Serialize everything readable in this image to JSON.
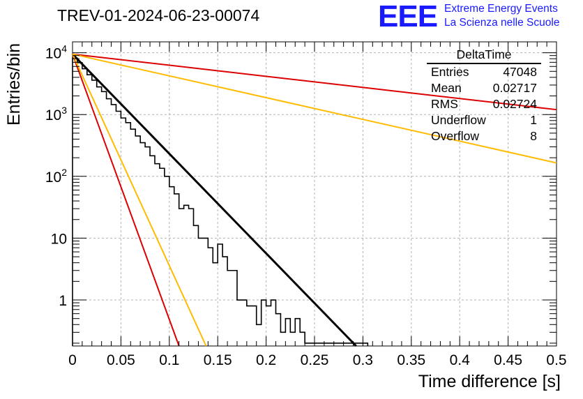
{
  "title": "TREV-01-2024-06-23-00074",
  "logo": {
    "mark": "EEE",
    "line1": "Extreme Energy Events",
    "line2": "La Scienza nelle Scuole",
    "color": "#1a1aff"
  },
  "stats": {
    "name": "DeltaTime",
    "rows": [
      {
        "label": "Entries",
        "value": "47048"
      },
      {
        "label": "Mean",
        "value": "0.02717"
      },
      {
        "label": "RMS",
        "value": "0.02724"
      },
      {
        "label": "Underflow",
        "value": "1"
      },
      {
        "label": "Overflow",
        "value": "8"
      }
    ]
  },
  "chart_data": {
    "type": "histogram",
    "title": "TREV-01-2024-06-23-00074",
    "xlabel": "Time difference [s]",
    "ylabel": "Entries/bin",
    "xlim": [
      0,
      0.5
    ],
    "ylim": [
      0.18,
      15000
    ],
    "yscale": "log",
    "grid": true,
    "x_ticks": [
      "0",
      "0.05",
      "0.1",
      "0.15",
      "0.2",
      "0.25",
      "0.3",
      "0.35",
      "0.4",
      "0.45",
      "0.5"
    ],
    "y_ticks": [
      {
        "value": 1,
        "base": "1",
        "exp": ""
      },
      {
        "value": 10,
        "base": "10",
        "exp": ""
      },
      {
        "value": 100,
        "base": "10",
        "exp": "2"
      },
      {
        "value": 1000,
        "base": "10",
        "exp": "3"
      },
      {
        "value": 10000,
        "base": "10",
        "exp": "4"
      }
    ],
    "bin_width": 0.005,
    "histogram": [
      8200,
      6900,
      5500,
      4400,
      3600,
      2800,
      2350,
      1800,
      1450,
      1130,
      880,
      740,
      580,
      450,
      350,
      300,
      215,
      160,
      135,
      100,
      68,
      52,
      30,
      34,
      30,
      16,
      10,
      10,
      7,
      4,
      8,
      5,
      3,
      3,
      1,
      1,
      0.8,
      0.8,
      0.4,
      1,
      0.8,
      1,
      0.6,
      0.3,
      0.5,
      0.3,
      0.5,
      0.3,
      0.2,
      0.2,
      0.2,
      0.2,
      0.2,
      0.2,
      0.2,
      0.2,
      0.2,
      0.2,
      0.2,
      0.2,
      0.2
    ],
    "fits": [
      {
        "name": "fit",
        "color": "#000000",
        "points": [
          [
            0,
            9500
          ],
          [
            0.293,
            0.18
          ]
        ]
      },
      {
        "name": "red-steep",
        "color": "#dd0000",
        "points": [
          [
            0,
            9500
          ],
          [
            0.11,
            0.18
          ]
        ]
      },
      {
        "name": "yellow-steep",
        "color": "#ffbb00",
        "points": [
          [
            0,
            9500
          ],
          [
            0.138,
            0.18
          ]
        ]
      },
      {
        "name": "red-shallow",
        "color": "#dd0000",
        "points": [
          [
            0,
            9500
          ],
          [
            0.5,
            1200
          ]
        ]
      },
      {
        "name": "yellow-shallow",
        "color": "#ffbb00",
        "points": [
          [
            0,
            9500
          ],
          [
            0.5,
            165
          ]
        ]
      }
    ]
  }
}
